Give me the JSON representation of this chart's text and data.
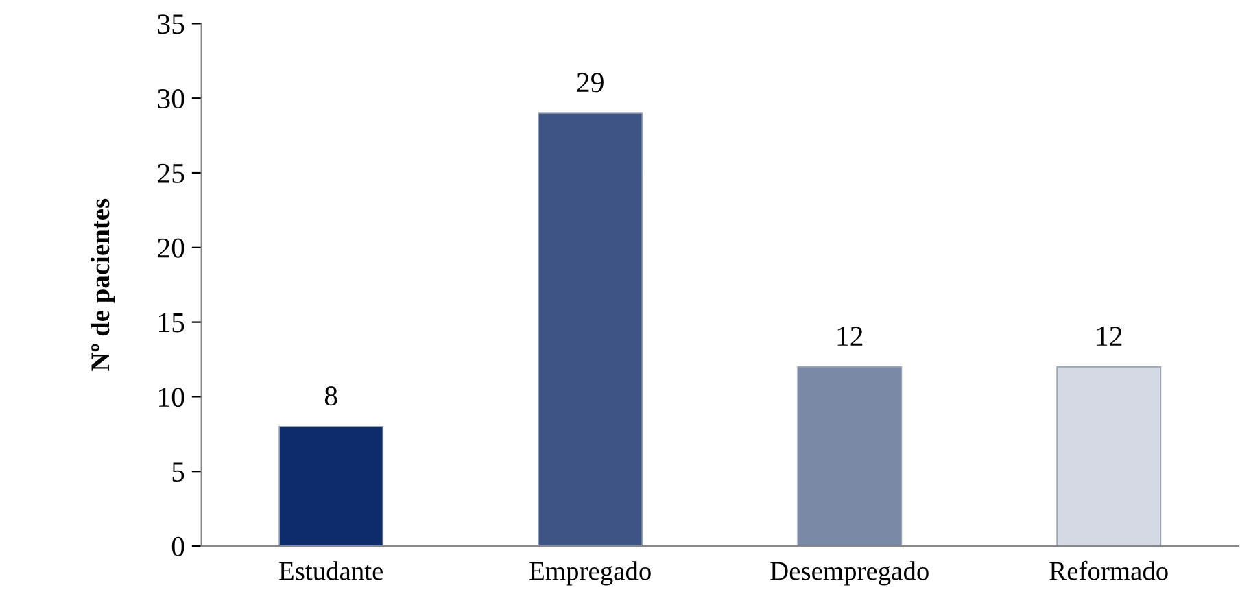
{
  "chart_data": {
    "type": "bar",
    "ylabel": "Nº de pacientes",
    "categories": [
      "Estudante",
      "Empregado",
      "Desempregado",
      "Reformado"
    ],
    "values": [
      8,
      29,
      12,
      12
    ],
    "colors": [
      "#0e2b6c",
      "#3d5484",
      "#7a89a6",
      "#d5d9e3"
    ],
    "ylim": [
      0,
      35
    ],
    "yticks": [
      0,
      5,
      10,
      15,
      20,
      25,
      30,
      35
    ],
    "data_labels": true,
    "grid": false,
    "legend": false
  }
}
